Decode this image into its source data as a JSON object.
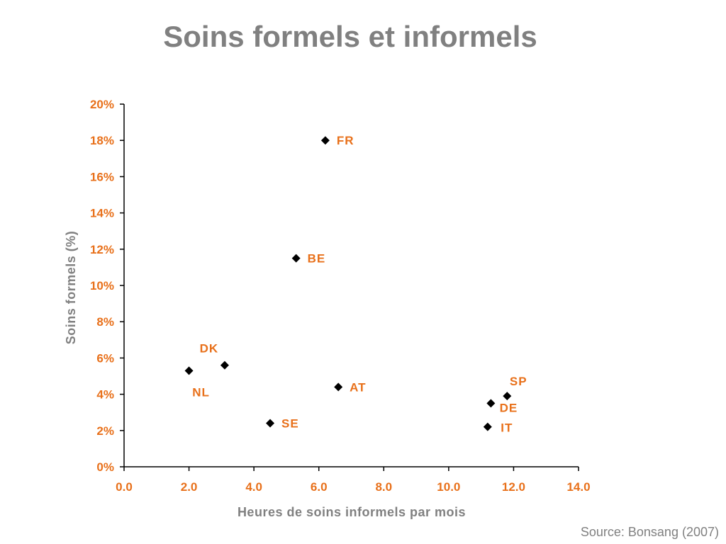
{
  "slide": {
    "title": "Soins formels et informels",
    "source": "Source: Bonsang (2007)"
  },
  "colors": {
    "accent": "#E8701A",
    "axis_title": "#808080",
    "marker": "#000000",
    "axis_line": "#000000"
  },
  "chart_data": {
    "type": "scatter",
    "xlabel": "Heures de soins informels par mois",
    "ylabel": "Soins formels (%)",
    "xlim": [
      0,
      14
    ],
    "ylim": [
      0,
      20
    ],
    "x_ticks": [
      "0.0",
      "2.0",
      "4.0",
      "6.0",
      "8.0",
      "10.0",
      "12.0",
      "14.0"
    ],
    "y_ticks": [
      "0%",
      "2%",
      "4%",
      "6%",
      "8%",
      "10%",
      "12%",
      "14%",
      "16%",
      "18%",
      "20%"
    ],
    "grid": false,
    "legend": "none",
    "marker": "diamond",
    "points": [
      {
        "label": "FR",
        "x": 6.2,
        "y": 18.0
      },
      {
        "label": "BE",
        "x": 5.3,
        "y": 11.5
      },
      {
        "label": "DK",
        "x": 3.1,
        "y": 5.6
      },
      {
        "label": "NL",
        "x": 2.0,
        "y": 5.3
      },
      {
        "label": "AT",
        "x": 6.6,
        "y": 4.4
      },
      {
        "label": "SE",
        "x": 4.5,
        "y": 2.4
      },
      {
        "label": "SP",
        "x": 11.8,
        "y": 3.9
      },
      {
        "label": "DE",
        "x": 11.3,
        "y": 3.5
      },
      {
        "label": "IT",
        "x": 11.2,
        "y": 2.2
      }
    ]
  }
}
